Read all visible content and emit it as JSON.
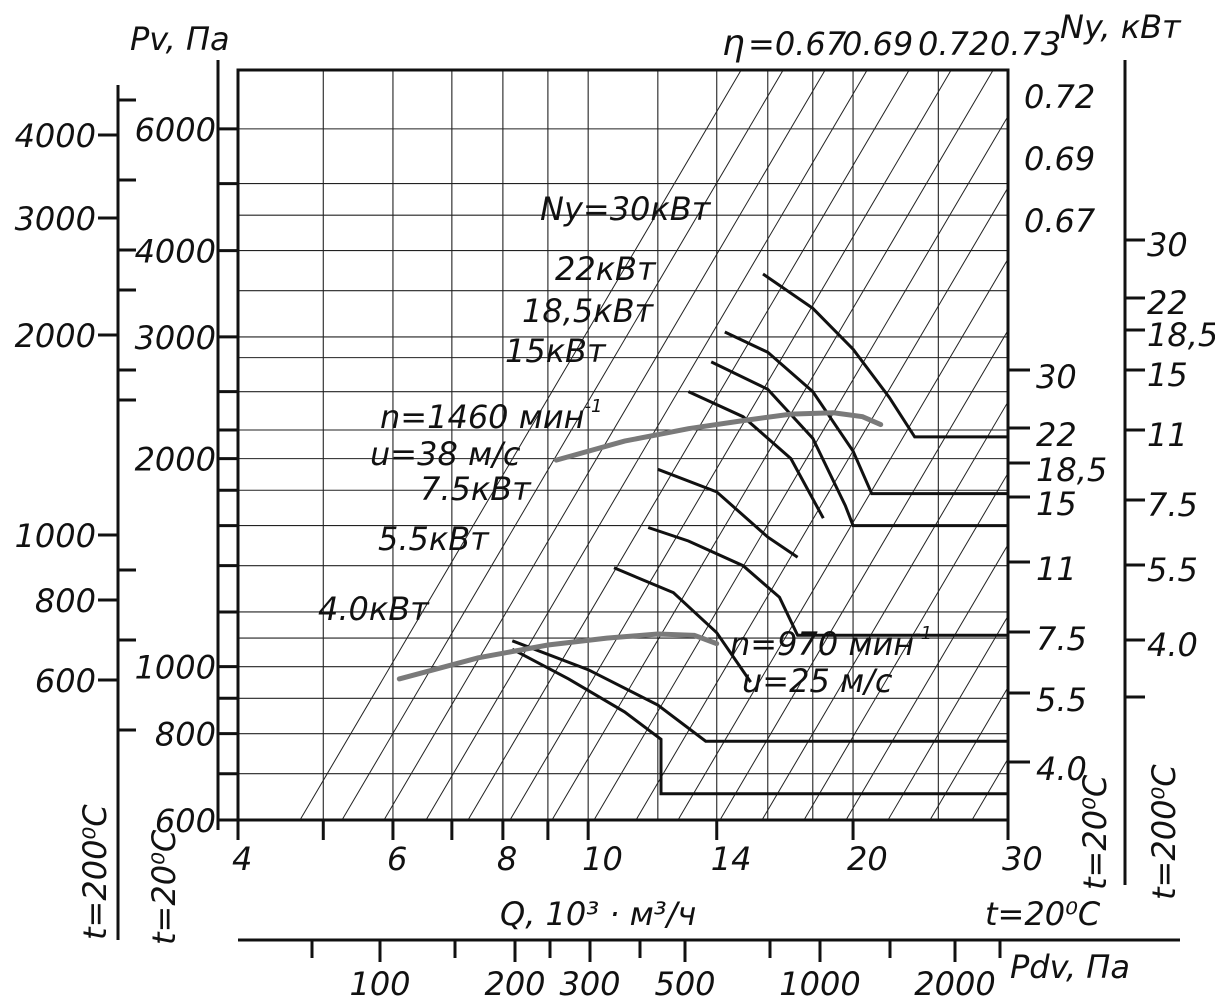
{
  "chart_data": {
    "type": "line",
    "x_axis": {
      "label": "Q, 10³ · м³/ч",
      "scale": "log",
      "ticks": [
        4,
        6,
        8,
        10,
        14,
        20,
        30
      ]
    },
    "left_axes": [
      {
        "label": "Pv, Па",
        "ticks": [
          600,
          800,
          1000,
          2000,
          3000,
          4000,
          6000
        ],
        "scale": "log",
        "condition": "t=20⁰C"
      },
      {
        "label": "",
        "ticks": [
          600,
          800,
          1000,
          2000,
          3000,
          4000
        ],
        "scale": "log",
        "condition": "t=200⁰C"
      }
    ],
    "right_axes": [
      {
        "label": "Ny, кВт",
        "ticks": [
          "30",
          "22",
          "18,5",
          "15",
          "11",
          "7.5",
          "5.5",
          "4.0"
        ],
        "condition": "t=20⁰C"
      },
      {
        "label": "",
        "ticks": [
          "30",
          "22",
          "18,5",
          "15",
          "11",
          "7.5",
          "5.5",
          "4.0"
        ],
        "condition": "t=200⁰C"
      }
    ],
    "bottom_axis": {
      "label": "Pdv, Па",
      "condition": "t=20⁰C",
      "ticks": [
        100,
        200,
        300,
        500,
        1000,
        2000
      ]
    },
    "efficiency": {
      "prefix": "η",
      "values": [
        "=0.67",
        "0.69",
        "0.72",
        "0.73"
      ],
      "side_labels": [
        "0.72",
        "0.69",
        "0.67"
      ]
    },
    "power_curves": [
      {
        "label": "Ny=30кВт",
        "end_label": "30",
        "points": [
          [
            15.8,
            3700
          ],
          [
            18,
            3300
          ],
          [
            20,
            2880
          ],
          [
            22,
            2450
          ],
          [
            23.5,
            2150
          ]
        ],
        "flat_pv": 2150
      },
      {
        "label": "22кВт",
        "end_label": "22",
        "points": [
          [
            14.3,
            3050
          ],
          [
            16,
            2850
          ],
          [
            18,
            2500
          ],
          [
            20,
            2050
          ],
          [
            21,
            1780
          ]
        ],
        "flat_pv": 1780
      },
      {
        "label": "18,5кВт",
        "end_label": "18,5",
        "points": [
          [
            13.8,
            2760
          ],
          [
            16,
            2520
          ],
          [
            18,
            2140
          ],
          [
            19.6,
            1710
          ],
          [
            20,
            1600
          ]
        ],
        "flat_pv": 1600
      },
      {
        "label": "15кВт",
        "end_label": "15",
        "points": [
          [
            13,
            2500
          ],
          [
            15,
            2300
          ],
          [
            17,
            2000
          ],
          [
            18.5,
            1640
          ]
        ],
        "flat_pv": null
      },
      {
        "label": "",
        "end_label": "",
        "points": [
          [
            12,
            1930
          ],
          [
            14,
            1790
          ],
          [
            16,
            1540
          ],
          [
            17.3,
            1440
          ]
        ],
        "flat_pv": null
      },
      {
        "label": "7.5кВт",
        "end_label": "11",
        "points": [
          [
            11.7,
            1590
          ],
          [
            13,
            1520
          ],
          [
            15,
            1400
          ],
          [
            16.5,
            1260
          ],
          [
            17.3,
            1110
          ]
        ],
        "flat_pv": 1110
      },
      {
        "label": "5.5кВт",
        "end_label": "7.5",
        "points": [
          [
            10.7,
            1390
          ],
          [
            12.5,
            1280
          ],
          [
            14,
            1120
          ],
          [
            15.3,
            950
          ]
        ],
        "flat_pv": null
      },
      {
        "label": "4.0кВт",
        "end_label": "5.5",
        "points": [
          [
            8.2,
            1090
          ],
          [
            10,
            990
          ],
          [
            12,
            880
          ],
          [
            13.6,
            780
          ]
        ],
        "flat_pv": 780
      },
      {
        "label": "",
        "end_label": "4.0",
        "points": [
          [
            8.2,
            1060
          ],
          [
            9.5,
            960
          ],
          [
            11,
            860
          ],
          [
            12.1,
            785
          ]
        ],
        "flat_pv": 655
      }
    ],
    "speed_curves": [
      {
        "label_n": "n=1460 мин",
        "label_u": "u=38 м/с",
        "exp": "-1",
        "points": [
          [
            9.2,
            1990
          ],
          [
            11,
            2120
          ],
          [
            13,
            2210
          ],
          [
            15,
            2270
          ],
          [
            17,
            2320
          ],
          [
            19,
            2330
          ],
          [
            20.5,
            2300
          ],
          [
            21.5,
            2240
          ]
        ]
      },
      {
        "label_n": "n=970 мин",
        "label_u": "u=25 м/с",
        "exp": "-1",
        "points": [
          [
            6.1,
            960
          ],
          [
            7.5,
            1030
          ],
          [
            9,
            1075
          ],
          [
            10.5,
            1100
          ],
          [
            12,
            1115
          ],
          [
            13.2,
            1110
          ],
          [
            14,
            1080
          ]
        ]
      }
    ]
  }
}
